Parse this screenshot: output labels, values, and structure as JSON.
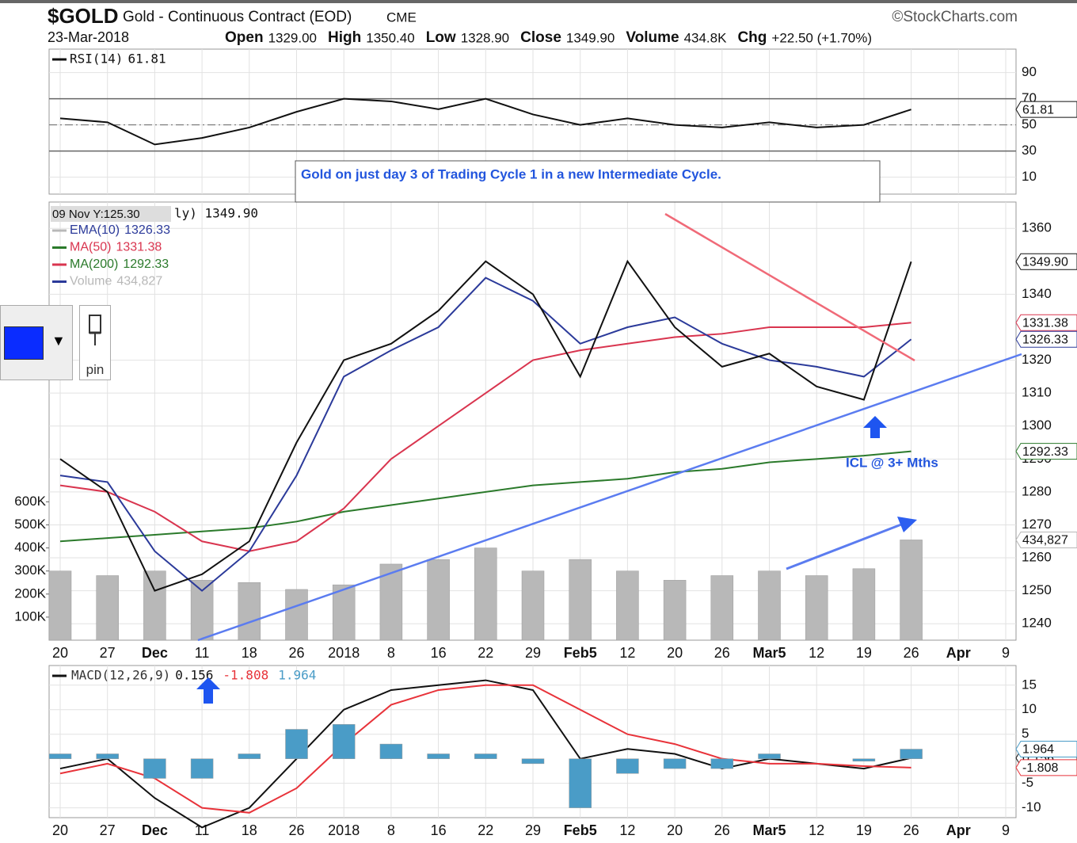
{
  "header": {
    "symbol": "$GOLD",
    "name": "Gold - Continuous Contract (EOD)",
    "exchange": "CME",
    "source": "©StockCharts.com",
    "date": "23-Mar-2018",
    "quote": [
      {
        "label": "Open",
        "value": "1329.00"
      },
      {
        "label": "High",
        "value": "1350.40"
      },
      {
        "label": "Low",
        "value": "1328.90"
      },
      {
        "label": "Close",
        "value": "1349.90"
      },
      {
        "label": "Volume",
        "value": "434.8K"
      },
      {
        "label": "Chg",
        "value": "+22.50 (+1.70%)"
      }
    ]
  },
  "widget": {
    "label": "pin"
  },
  "chart_data": [
    {
      "type": "line",
      "tooltip": "09 Nov Y:125.30",
      "legend_note": "ly) 1349.90",
      "grid": true,
      "categories": [
        "20",
        "27",
        "Dec",
        "11",
        "18",
        "26",
        "2018",
        "8",
        "16",
        "22",
        "29",
        "Feb5",
        "12",
        "20",
        "26",
        "Mar5",
        "12",
        "19",
        "26",
        "Apr",
        "9"
      ],
      "ylim": [
        1235,
        1368
      ],
      "yticks": [
        1240,
        1250,
        1260,
        1270,
        1280,
        1290,
        1300,
        1310,
        1320,
        1340,
        1360
      ],
      "y2lim": [
        0,
        1900000
      ],
      "y2ticks": [
        {
          "value": 100000,
          "label": "100K"
        },
        {
          "value": 200000,
          "label": "200K"
        },
        {
          "value": 300000,
          "label": "300K"
        },
        {
          "value": 400000,
          "label": "400K"
        },
        {
          "value": 500000,
          "label": "500K"
        },
        {
          "value": 600000,
          "label": "600K"
        }
      ],
      "annotations": {
        "box": "Gold on just day 3 of Trading Cycle 1 in a new Intermediate Cycle.",
        "icl": "ICL @ 3+ Mths"
      },
      "series": [
        {
          "name": "Volume",
          "style": "bar",
          "axis": "y2",
          "color": "#b8b8b8",
          "legend": true,
          "tag": true,
          "values": [
            300000,
            280000,
            300000,
            260000,
            250000,
            220000,
            240000,
            330000,
            350000,
            400000,
            300000,
            350000,
            300000,
            260000,
            280000,
            300000,
            280000,
            310000,
            434827,
            null,
            null
          ],
          "value_labels": [
            null,
            null,
            null,
            null,
            null,
            null,
            null,
            null,
            null,
            null,
            null,
            null,
            null,
            null,
            null,
            null,
            null,
            null,
            "434,827",
            null,
            null
          ]
        },
        {
          "name": "MA(200)",
          "color": "#2b7a2b",
          "legend": true,
          "tag": true,
          "values": [
            1265,
            1266,
            1267,
            1268,
            1269,
            1271,
            1274,
            1276,
            1278,
            1280,
            1282,
            1283,
            1284,
            1286,
            1287,
            1289,
            1290,
            1291,
            1292.33,
            null,
            null
          ]
        },
        {
          "name": "MA(50)",
          "color": "#d9354f",
          "legend": true,
          "tag": true,
          "values": [
            1282,
            1280,
            1274,
            1265,
            1262,
            1265,
            1275,
            1290,
            1300,
            1310,
            1320,
            1323,
            1325,
            1327,
            1328,
            1330,
            1330,
            1330,
            1331.38,
            null,
            null
          ]
        },
        {
          "name": "EMA(10)",
          "color": "#2b3a9a",
          "legend": true,
          "tag": true,
          "values": [
            1285,
            1283,
            1262,
            1250,
            1262,
            1285,
            1315,
            1323,
            1330,
            1345,
            1338,
            1325,
            1330,
            1333,
            1325,
            1320,
            1318,
            1315,
            1326.33,
            null,
            null
          ]
        },
        {
          "color": "#111111",
          "tag": true,
          "values": [
            1290,
            1280,
            1250,
            1255,
            1265,
            1295,
            1320,
            1325,
            1335,
            1350,
            1340,
            1315,
            1350,
            1330,
            1318,
            1322,
            1312,
            1308,
            1349.9,
            null,
            null
          ],
          "value_labels": [
            null,
            null,
            null,
            null,
            null,
            null,
            null,
            null,
            null,
            null,
            null,
            null,
            null,
            null,
            null,
            null,
            null,
            null,
            "1349.90",
            null,
            null
          ]
        }
      ]
    },
    {
      "type": "line",
      "grid": true,
      "ylim": [
        -3,
        108
      ],
      "yticks": [
        10,
        30,
        50,
        70,
        90
      ],
      "hlines": [
        30,
        70
      ],
      "dashed_hlines": [
        50
      ],
      "series": [
        {
          "name": "RSI(14)",
          "color": "#111111",
          "legend": true,
          "tag": true,
          "values": [
            55,
            52,
            35,
            40,
            48,
            60,
            70,
            68,
            62,
            70,
            58,
            50,
            55,
            50,
            48,
            52,
            48,
            50,
            61.81,
            null,
            null
          ]
        }
      ]
    },
    {
      "type": "line",
      "grid": true,
      "ylim": [
        -12,
        19
      ],
      "yticks": [
        -10,
        -5,
        5,
        10,
        15
      ],
      "categories": [
        "20",
        "27",
        "Dec",
        "11",
        "18",
        "26",
        "2018",
        "8",
        "16",
        "22",
        "29",
        "Feb5",
        "12",
        "20",
        "26",
        "Mar5",
        "12",
        "19",
        "26",
        "Apr",
        "9"
      ],
      "series": [
        {
          "name": "MACD(12,26,9)",
          "color": "#111111",
          "legend": true,
          "tag": true,
          "values": [
            -2,
            0,
            -8,
            -14,
            -10,
            0,
            10,
            14,
            15,
            16,
            14,
            0,
            2,
            1,
            -2,
            0,
            -1,
            -2,
            0.156,
            null,
            null
          ]
        },
        {
          "color": "#e8333a",
          "legend": true,
          "tag": true,
          "values": [
            -3,
            -1,
            -4,
            -10,
            -11,
            -6,
            3,
            11,
            14,
            15,
            15,
            10,
            5,
            3,
            0,
            -1,
            -1,
            -1.5,
            -1.808,
            null,
            null
          ]
        },
        {
          "color": "#4a9cc7",
          "style": "bar",
          "legend": true,
          "tag": true,
          "values": [
            1,
            1,
            -4,
            -4,
            1,
            6,
            7,
            3,
            1,
            1,
            -1,
            -10,
            -3,
            -2,
            -2,
            1,
            0,
            -0.5,
            1.964,
            null,
            null
          ]
        }
      ]
    }
  ]
}
